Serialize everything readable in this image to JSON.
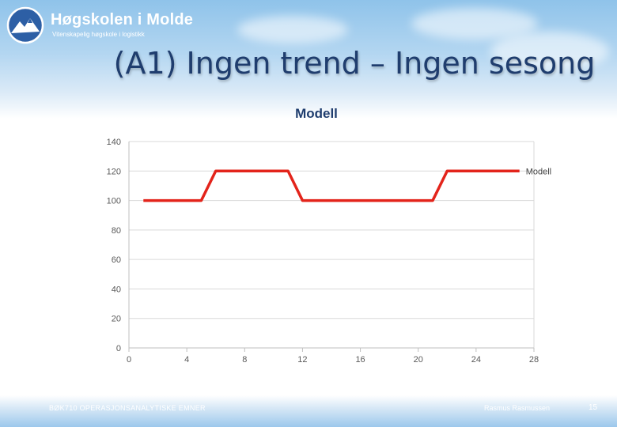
{
  "header": {
    "institution": "Høgskolen i Molde",
    "tagline": "Vitenskapelig høgskole i logistikk"
  },
  "slide": {
    "title": "(A1) Ingen trend – Ingen sesong"
  },
  "chart_data": {
    "type": "line",
    "title": "Modell",
    "xlabel": "",
    "ylabel": "",
    "xlim": [
      0,
      28
    ],
    "ylim": [
      0,
      140
    ],
    "x_ticks": [
      0,
      4,
      8,
      12,
      16,
      20,
      24,
      28
    ],
    "y_ticks": [
      0,
      20,
      40,
      60,
      80,
      100,
      120,
      140
    ],
    "grid": true,
    "series": [
      {
        "name": "Modell",
        "color": "#e3241b",
        "x": [
          1,
          5,
          6,
          11,
          12,
          21,
          22,
          27
        ],
        "y": [
          100,
          100,
          120,
          120,
          100,
          100,
          120,
          120
        ]
      }
    ]
  },
  "footer": {
    "course": "BØK710 OPERASJONSANALYTISKE EMNER",
    "author": "Rasmus Rasmussen",
    "page": "15"
  }
}
